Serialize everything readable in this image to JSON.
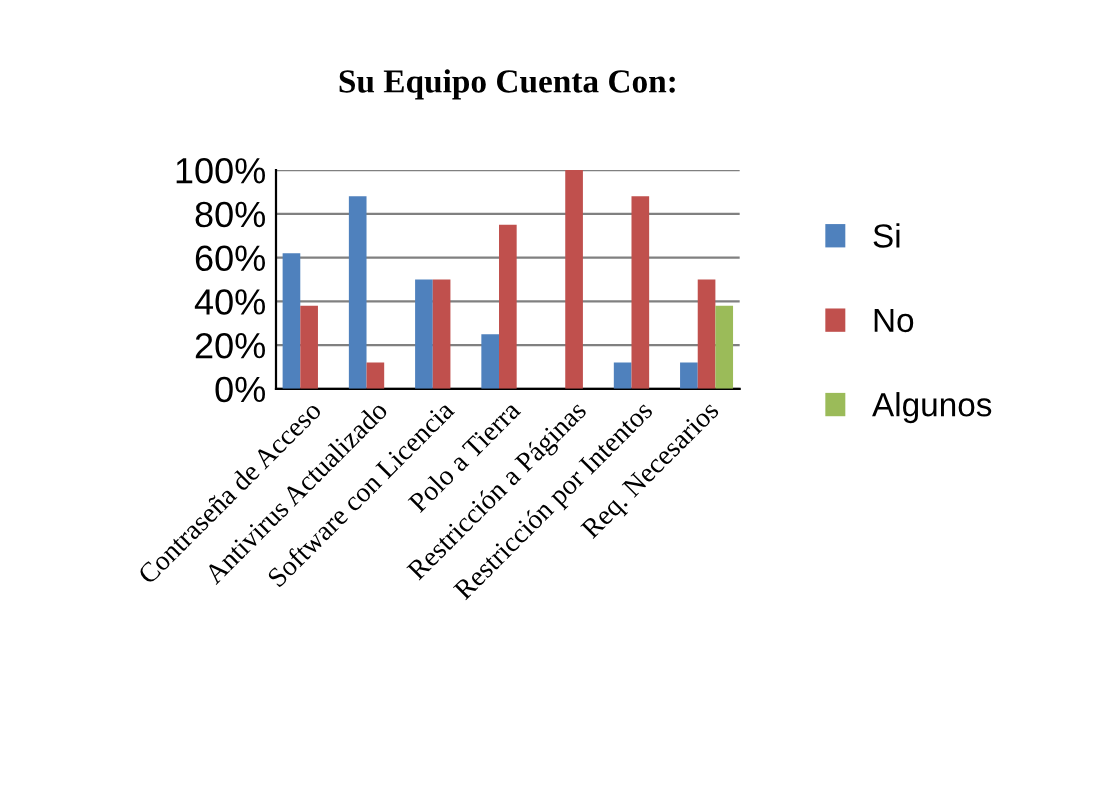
{
  "chart_data": {
    "type": "bar",
    "title": "Su Equipo Cuenta Con:",
    "categories": [
      "Contraseña de Acceso",
      "Antivirus Actualizado",
      "Software con Licencia",
      "Polo a Tierra",
      "Restricción a Páginas",
      "Restricción por Intentos",
      "Req. Necesarios"
    ],
    "series": [
      {
        "name": "Si",
        "color": "#4f81bd",
        "values": [
          62,
          88,
          50,
          25,
          0,
          12,
          12
        ]
      },
      {
        "name": "No",
        "color": "#c0504d",
        "values": [
          38,
          12,
          50,
          75,
          100,
          88,
          50
        ]
      },
      {
        "name": "Algunos",
        "color": "#9bbb59",
        "values": [
          null,
          null,
          null,
          null,
          null,
          null,
          38
        ]
      }
    ],
    "ylim": [
      0,
      100
    ],
    "yticks": [
      {
        "value": 0,
        "label": "0%"
      },
      {
        "value": 20,
        "label": "20%"
      },
      {
        "value": 40,
        "label": "40%"
      },
      {
        "value": 60,
        "label": "60%"
      },
      {
        "value": 80,
        "label": "80%"
      },
      {
        "value": 100,
        "label": "100%"
      }
    ],
    "grid": "y",
    "legend": "right"
  }
}
